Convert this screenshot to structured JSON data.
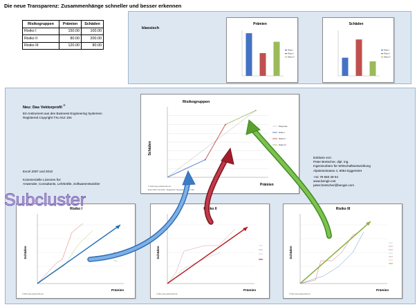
{
  "page_title": "Die neue Transparenz: Zusammenhänge schneller und besser erkennen",
  "table": {
    "headers": [
      "Risikogruppen",
      "Prämien",
      "Schäden"
    ],
    "rows": [
      {
        "name": "Risiko I",
        "praemie": "150.00",
        "schaden": "100.00"
      },
      {
        "name": "Risiko II",
        "praemie": "80.00",
        "schaden": "200.00"
      },
      {
        "name": "Risiko III",
        "praemie": "120.00",
        "schaden": "80.00"
      }
    ]
  },
  "classic": {
    "label": "klassisch",
    "praemien_title": "Prämien",
    "schaeden_title": "Schäden",
    "legend": [
      "Risiko I",
      "Risiko II",
      "Risiko III"
    ]
  },
  "intro": {
    "title": "Neu: Das Vektorprofil",
    "title_mark": "®",
    "line1": "Ein Instrument aus den Business Engineering Systemen",
    "line2": "Registered Copyright TXu 912 194",
    "excel": "Excel 2007 und 2010",
    "lic1": "Kommerzielle Lizenzen für:",
    "lic2": "Anwender, Consultants, Lehrkräfte, Softwareentwickler"
  },
  "contact": {
    "l1": "Exklusiv von:",
    "l2": "Peter Bretscher, dipl. Ing.",
    "l3": "Ingenieurbüro für Wirtschaftsentwicklung",
    "l4": "Alpsteinstrasse 4, 9054 Eggersriet",
    "l5": "+41 79 650 49 04",
    "l6": "www.bengin.net",
    "l7": "peter.bretscher@bengin.com"
  },
  "vector_chart": {
    "title": "Risikogruppen",
    "xlabel": "Prämien",
    "ylabel": "Schäden",
    "legend": [
      "Diagonale",
      "Risiko I",
      "Risiko II",
      "Risiko III"
    ],
    "footer1": "© 2011 www.vektorprofil.com",
    "footer2": "Excel 2007 und 2010 · Registered Copyright TXu 912 194"
  },
  "sub_label": "Subcluster",
  "sub_charts": [
    {
      "title": "Risiko I",
      "xlabel": "Prämien",
      "ylabel": "Schäden"
    },
    {
      "title": "Risiko II",
      "xlabel": "Prämien",
      "ylabel": "Schäden"
    },
    {
      "title": "Risiko III",
      "xlabel": "Prämien",
      "ylabel": "Schäden"
    }
  ],
  "sub_footer": "© 2011 www.vektorprofil.com",
  "colors": {
    "risk1": "#4472c4",
    "risk2": "#c0504d",
    "risk3": "#9bbb59",
    "panel": "#dde7f2",
    "arrow_blue": "#4a86cf",
    "arrow_red": "#9b1b26",
    "arrow_green": "#5aa02c"
  },
  "chart_data": [
    {
      "type": "bar",
      "title": "Prämien",
      "categories": [
        "Risiko I",
        "Risiko II",
        "Risiko III"
      ],
      "values": [
        150,
        80,
        120
      ],
      "ylim": [
        0,
        160
      ]
    },
    {
      "type": "bar",
      "title": "Schäden",
      "categories": [
        "Risiko I",
        "Risiko II",
        "Risiko III"
      ],
      "values": [
        100,
        200,
        80
      ],
      "ylim": [
        0,
        250
      ]
    },
    {
      "type": "line",
      "title": "Risikogruppen",
      "xlabel": "Prämien",
      "ylabel": "Schäden",
      "xlim": [
        0,
        400
      ],
      "ylim": [
        0,
        400
      ],
      "series": [
        {
          "name": "Diagonale",
          "x": [
            0,
            350
          ],
          "y": [
            0,
            380
          ]
        },
        {
          "name": "Risiko I",
          "x": [
            0,
            150
          ],
          "y": [
            0,
            100
          ]
        },
        {
          "name": "Risiko II",
          "x": [
            150,
            230
          ],
          "y": [
            100,
            300
          ]
        },
        {
          "name": "Risiko III",
          "x": [
            230,
            350
          ],
          "y": [
            300,
            380
          ]
        }
      ]
    }
  ]
}
